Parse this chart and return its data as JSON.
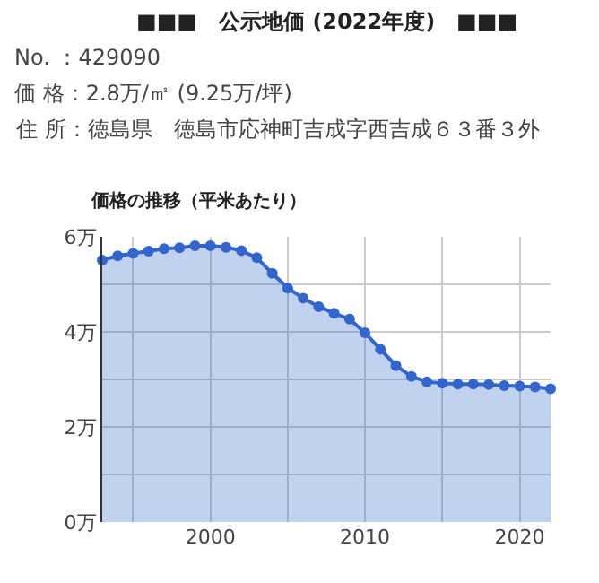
{
  "chart_data": {
    "type": "area",
    "title": "■■■　公示地価 (2022年度)　■■■",
    "annotations": [
      "No. ：429090",
      "価 格：2.8万/㎡ (9.25万/坪)",
      "住 所：徳島県　徳島市応神町吉成字西吉成６３番３外"
    ],
    "subtitle": "価格の推移（平米あたり）",
    "x": [
      1993,
      1994,
      1995,
      1996,
      1997,
      1998,
      1999,
      2000,
      2001,
      2002,
      2003,
      2004,
      2005,
      2006,
      2007,
      2008,
      2009,
      2010,
      2011,
      2012,
      2013,
      2014,
      2015,
      2016,
      2017,
      2018,
      2019,
      2020,
      2021,
      2022
    ],
    "series": [
      {
        "color": "#3366cc",
        "values": [
          5.51,
          5.6,
          5.65,
          5.7,
          5.75,
          5.77,
          5.81,
          5.81,
          5.78,
          5.71,
          5.56,
          5.23,
          4.92,
          4.71,
          4.53,
          4.39,
          4.27,
          3.98,
          3.63,
          3.29,
          3.06,
          2.95,
          2.92,
          2.9,
          2.9,
          2.89,
          2.87,
          2.86,
          2.84,
          2.8
        ]
      }
    ],
    "xlim": [
      1993,
      2022
    ],
    "xticks": [
      {
        "value": 1995,
        "label": null
      },
      2000,
      {
        "value": 2005,
        "label": null
      },
      2010,
      {
        "value": 2015,
        "label": null
      },
      2020
    ],
    "ylim": [
      0,
      6
    ],
    "yticks": [
      {
        "value": 0,
        "label": "0万"
      },
      {
        "value": 1,
        "label": null
      },
      {
        "value": 2,
        "label": "2万"
      },
      {
        "value": 3,
        "label": null
      },
      {
        "value": 4,
        "label": "4万"
      },
      {
        "value": 5,
        "label": null
      },
      {
        "value": 6,
        "label": "6万"
      }
    ],
    "grid": true,
    "marker": "circle",
    "line_style": "solid"
  }
}
